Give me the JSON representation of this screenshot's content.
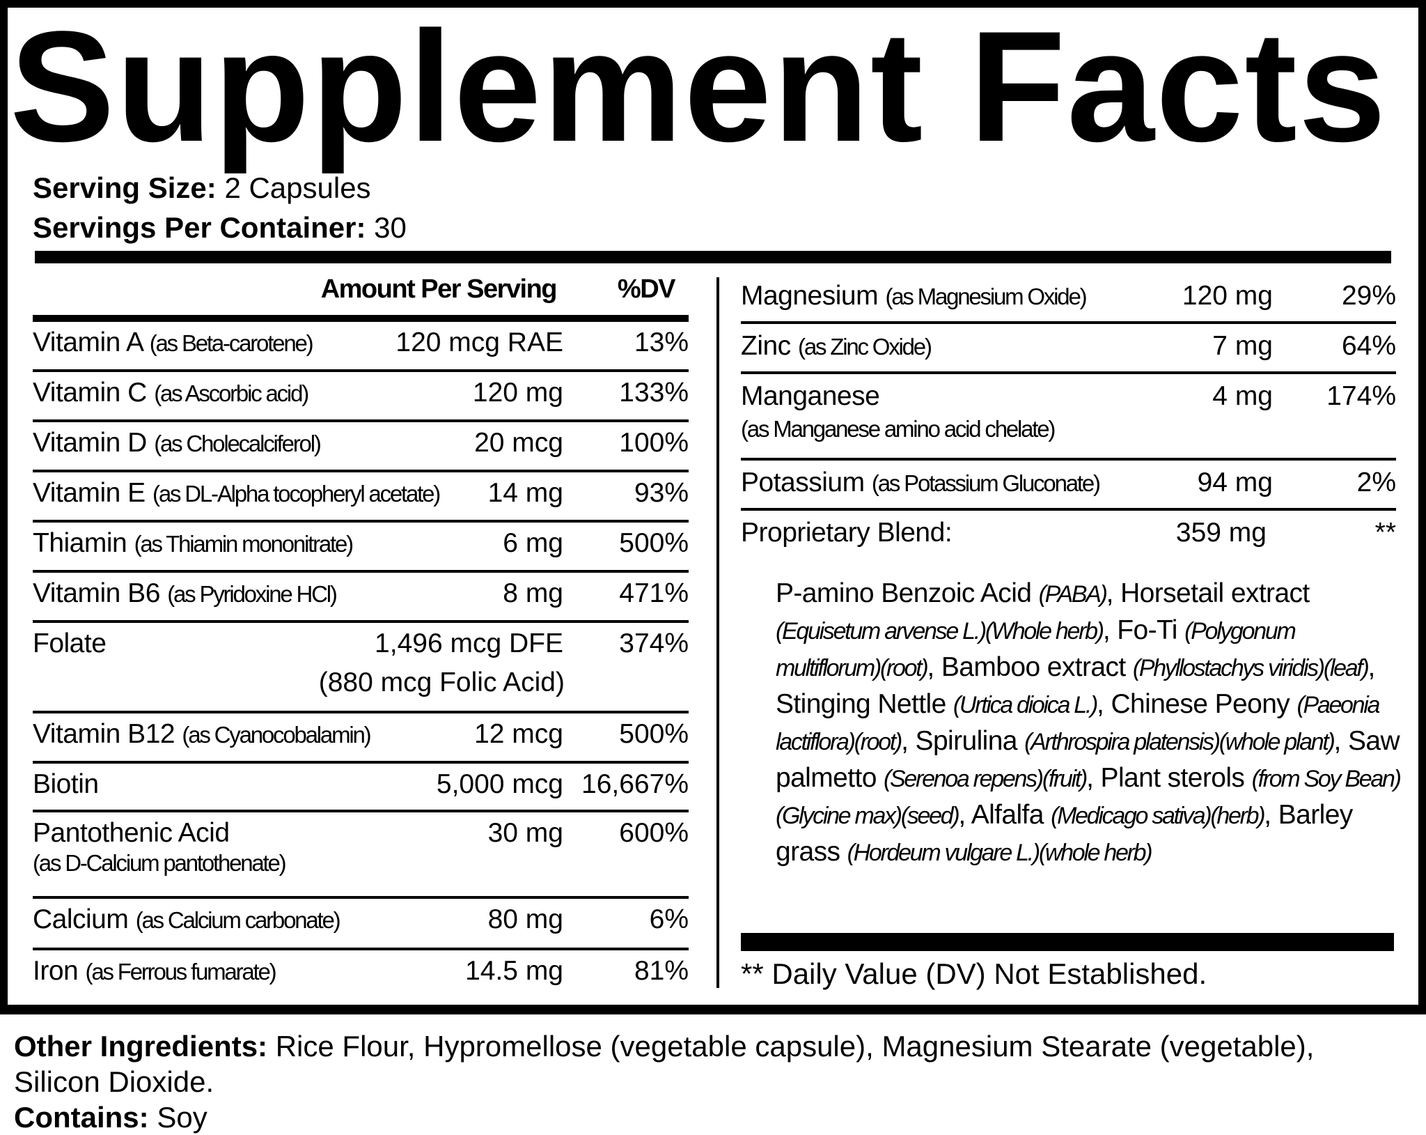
{
  "title": "Supplement Facts",
  "serving": {
    "size_label": "Serving Size:",
    "size_value": "2 Capsules",
    "per_container_label": "Servings Per Container:",
    "per_container_value": "30"
  },
  "left_header": {
    "amount": "Amount Per Serving",
    "dv": "%DV"
  },
  "left_rows": [
    {
      "name": "Vitamin A",
      "source": "(as Beta-carotene)",
      "amount": "120 mcg RAE",
      "dv": "13%"
    },
    {
      "name": "Vitamin C",
      "source": "(as Ascorbic acid)",
      "amount": "120 mg",
      "dv": "133%"
    },
    {
      "name": "Vitamin D",
      "source": "(as Cholecalciferol)",
      "amount": "20 mcg",
      "dv": "100%"
    },
    {
      "name": "Vitamin E",
      "source": "(as DL-Alpha tocopheryl acetate)",
      "amount": "14 mg",
      "dv": "93%"
    },
    {
      "name": "Thiamin",
      "source": "(as Thiamin mononitrate)",
      "amount": "6 mg",
      "dv": "500%"
    },
    {
      "name": "Vitamin B6",
      "source": "(as Pyridoxine HCl)",
      "amount": "8 mg",
      "dv": "471%"
    },
    {
      "name": "Folate",
      "source": "",
      "amount": "1,496 mcg DFE",
      "amount2": "(880 mcg Folic Acid)",
      "dv": "374%"
    },
    {
      "name": "Vitamin B12",
      "source": "(as Cyanocobalamin)",
      "amount": "12 mcg",
      "dv": "500%"
    },
    {
      "name": "Biotin",
      "source": "",
      "amount": "5,000 mcg",
      "dv": "16,667%"
    },
    {
      "name": "Pantothenic Acid",
      "source": "(as  D-Calcium pantothenate)",
      "amount": "30 mg",
      "dv": "600%"
    },
    {
      "name": "Calcium",
      "source": "(as Calcium carbonate)",
      "amount": "80 mg",
      "dv": "6%"
    },
    {
      "name": "Iron",
      "source": "(as Ferrous fumarate)",
      "amount": "14.5 mg",
      "dv": "81%"
    }
  ],
  "right_rows": [
    {
      "name": "Magnesium",
      "source": "(as Magnesium Oxide)",
      "amount": "120 mg",
      "dv": "29%"
    },
    {
      "name": "Zinc",
      "source": "(as Zinc Oxide)",
      "amount": "7 mg",
      "dv": "64%"
    },
    {
      "name": "Manganese",
      "source": "(as Manganese amino acid chelate)",
      "amount": "4 mg",
      "dv": "174%"
    },
    {
      "name": "Potassium",
      "source": "(as Potassium Gluconate)",
      "amount": "94 mg",
      "dv": "2%"
    },
    {
      "name": "Proprietary Blend:",
      "source": "",
      "amount": "359 mg",
      "dv": "**"
    }
  ],
  "blend": [
    {
      "t": "P-amino Benzoic Acid ",
      "i": "(PABA)"
    },
    {
      "t": ", Horsetail extract ",
      "i": "(Equisetum arvense L.)(Whole herb)"
    },
    {
      "t": ", Fo-Ti ",
      "i": "(Polygonum multiflorum)(root)"
    },
    {
      "t": ", Bamboo extract ",
      "i": "(Phyllostachys viridis)(leaf)"
    },
    {
      "t": ", Stinging Nettle  ",
      "i": "(Urtica dioica L.)"
    },
    {
      "t": ", Chinese Peony ",
      "i": "(Paeonia lactiflora)(root)"
    },
    {
      "t": ", Spirulina ",
      "i": "(Arthrospira platensis)(whole plant)"
    },
    {
      "t": ", Saw palmetto ",
      "i": "(Serenoa repens)(fruit)"
    },
    {
      "t": ", Plant sterols ",
      "i": "(from Soy Bean)(Glycine max)(seed)"
    },
    {
      "t": ", Alfalfa ",
      "i": "(Medicago sativa)(herb)"
    },
    {
      "t": ", Barley grass ",
      "i": "(Hordeum vulgare L.)(whole herb)"
    }
  ],
  "footnote": "** Daily Value (DV) Not Established.",
  "other": {
    "ingredients_label": "Other Ingredients:",
    "ingredients_value": "Rice Flour, Hypromellose (vegetable capsule), Magnesium Stearate (vegetable), Silicon Dioxide.",
    "contains_label": "Contains:",
    "contains_value": "Soy"
  }
}
